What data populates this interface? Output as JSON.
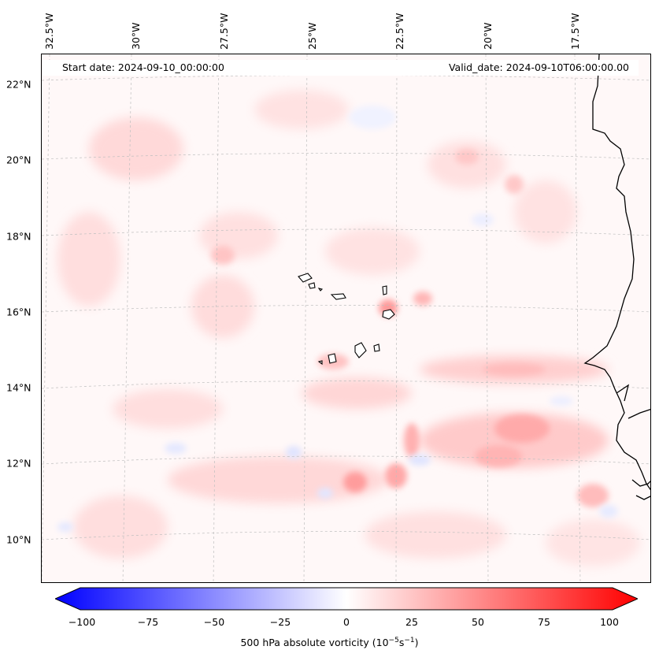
{
  "map": {
    "start_date": "Start date: 2024-09-10_00:00:00",
    "valid_date": "Valid_date: 2024-09-10T06:00:00.00",
    "lat_labels": [
      "22°N",
      "20°N",
      "18°N",
      "16°N",
      "14°N",
      "12°N",
      "10°N"
    ],
    "lon_labels": [
      "32.5°W",
      "30°W",
      "27.5°W",
      "25°W",
      "22.5°W",
      "20°W",
      "17.5°W"
    ],
    "field_colors": {
      "positive": "#ff0000",
      "negative": "#0000ff",
      "zero": "#ffffff"
    }
  },
  "colorbar": {
    "ticks": [
      "−100",
      "−75",
      "−50",
      "−25",
      "0",
      "25",
      "50",
      "75",
      "100"
    ],
    "label": "500 hPa absolute vorticity (10",
    "label_unit1": "s",
    "label_close": ")",
    "exp1": "−5",
    "exp2": "−1",
    "min_color": "#0000ff",
    "max_color": "#ff0000"
  }
}
